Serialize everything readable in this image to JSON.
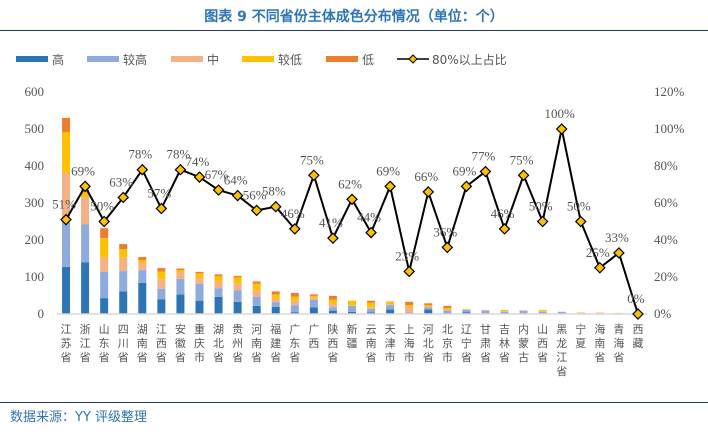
{
  "title": "图表 9 不同省份主体成色分布情况（单位：个）",
  "footer": "数据来源：YY 评级整理",
  "chart_data": {
    "type": "bar",
    "stacked": true,
    "categories": [
      "江苏省",
      "浙江省",
      "山东省",
      "四川省",
      "湖南省",
      "江西省",
      "安徽省",
      "重庆市",
      "湖北省",
      "贵州省",
      "河南省",
      "福建省",
      "广东省",
      "广西",
      "陕西省",
      "新疆",
      "云南省",
      "天津市",
      "上海市",
      "河北省",
      "北京市",
      "辽宁省",
      "甘肃省",
      "吉林省",
      "内蒙古",
      "山西省",
      "黑龙江省",
      "宁夏",
      "海南省",
      "青海省",
      "西藏"
    ],
    "series": [
      {
        "name": "高",
        "color": "#2E75B6",
        "values": [
          127,
          140,
          43,
          61,
          84,
          40,
          53,
          36,
          46,
          33,
          22,
          19,
          5,
          18,
          9,
          6,
          4,
          12,
          2,
          12,
          2,
          5,
          1,
          1,
          1,
          1,
          1,
          0,
          0,
          0,
          0
        ]
      },
      {
        "name": "较高",
        "color": "#8FAADC",
        "values": [
          129,
          102,
          71,
          55,
          34,
          28,
          42,
          45,
          23,
          31,
          24,
          13,
          19,
          20,
          9,
          16,
          10,
          12,
          2,
          6,
          7,
          6,
          8,
          5,
          7,
          5,
          5,
          0,
          0,
          1,
          0
        ]
      },
      {
        "name": "中",
        "color": "#F4B183",
        "values": [
          125,
          73,
          39,
          36,
          20,
          26,
          17,
          16,
          19,
          19,
          18,
          10,
          12,
          7,
          9,
          2,
          4,
          2,
          15,
          2,
          2,
          1,
          2,
          1,
          2,
          1,
          0,
          2,
          3,
          1,
          0
        ]
      },
      {
        "name": "较低",
        "color": "#FFC000",
        "values": [
          111,
          25,
          52,
          23,
          8,
          21,
          7,
          13,
          14,
          16,
          18,
          11,
          11,
          4,
          12,
          12,
          13,
          7,
          5,
          4,
          5,
          1,
          0,
          4,
          0,
          4,
          0,
          2,
          1,
          1,
          0
        ]
      },
      {
        "name": "低",
        "color": "#ED7D31",
        "values": [
          38,
          5,
          27,
          14,
          8,
          9,
          4,
          4,
          5,
          4,
          6,
          8,
          10,
          4,
          10,
          0,
          5,
          1,
          9,
          5,
          6,
          0,
          0,
          0,
          0,
          0,
          0,
          0,
          0,
          0,
          0
        ]
      }
    ],
    "line_series": {
      "name": "80%以上占比",
      "axis": "right",
      "color": "#000000",
      "marker": "diamond",
      "marker_color": "#FFC000",
      "values": [
        51,
        69,
        50,
        63,
        78,
        57,
        78,
        74,
        67,
        64,
        56,
        58,
        46,
        75,
        41,
        62,
        44,
        69,
        23,
        66,
        36,
        69,
        77,
        46,
        75,
        50,
        100,
        50,
        25,
        33,
        0
      ],
      "labels": [
        "51%",
        "69%",
        "50%",
        "63%",
        "78%",
        "57%",
        "78%",
        "74%",
        "67%",
        "64%",
        "56%",
        "58%",
        "46%",
        "75%",
        "41%",
        "62%",
        "44%",
        "69%",
        "23%",
        "66%",
        "36%",
        "69%",
        "77%",
        "46%",
        "75%",
        "50%",
        "100%",
        "50%",
        "25%",
        "33%",
        "0%"
      ]
    },
    "ylim": [
      0,
      600
    ],
    "y_ticks": [
      "0",
      "100",
      "200",
      "300",
      "400",
      "500",
      "600"
    ],
    "y2lim": [
      0,
      120
    ],
    "y2_ticks": [
      "0%",
      "20%",
      "40%",
      "60%",
      "80%",
      "100%",
      "120%"
    ],
    "grid": false,
    "legend_position": "top"
  }
}
